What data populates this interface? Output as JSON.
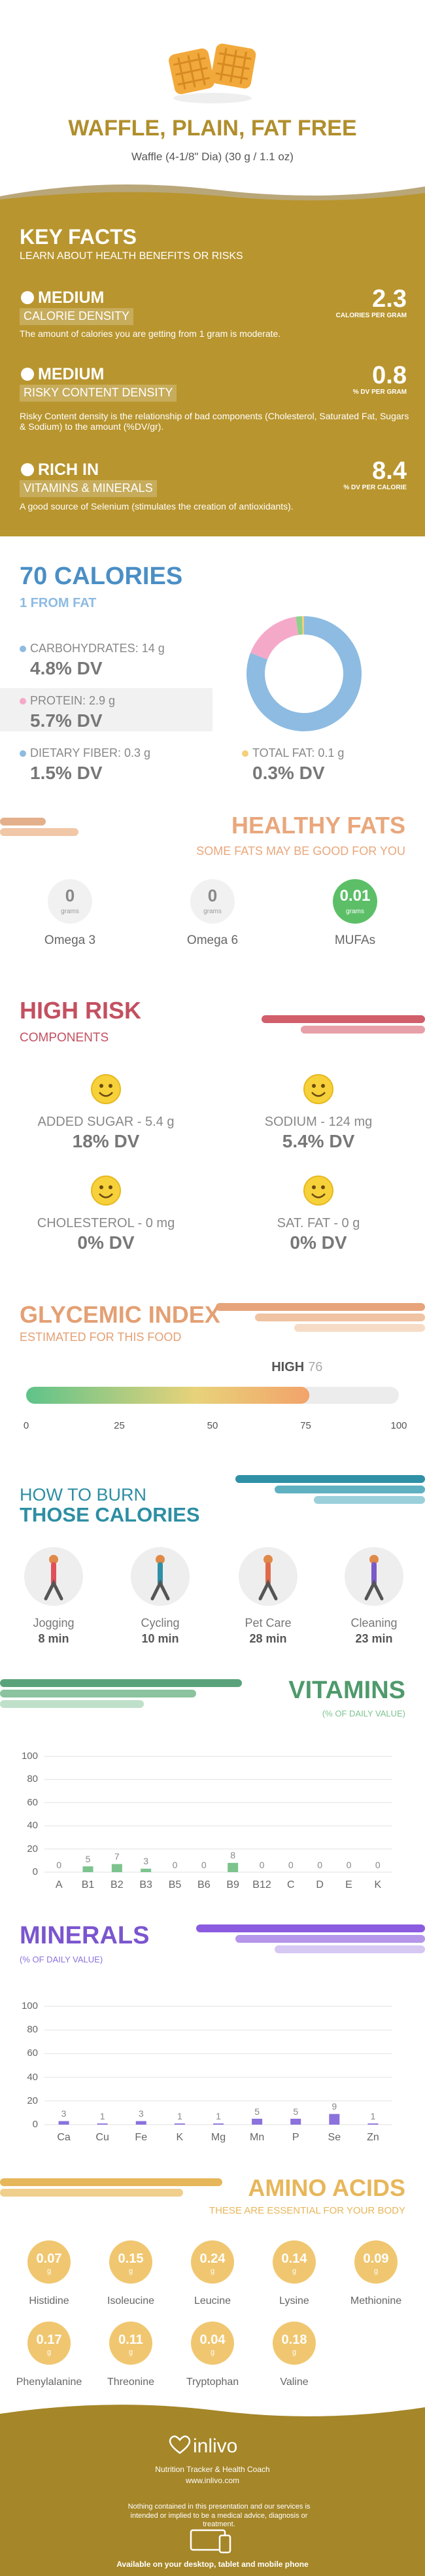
{
  "header": {
    "title": "WAFFLE, PLAIN, FAT FREE",
    "subtitle": "Waffle (4-1/8\" Dia) (30 g / 1.1 oz)"
  },
  "key_facts": {
    "title": "KEY FACTS",
    "subtitle": "LEARN ABOUT HEALTH BENEFITS OR RISKS",
    "items": [
      {
        "level": "MEDIUM",
        "name": "CALORIE DENSITY",
        "value": 2.3,
        "unit": "CALORIES PER GRAM",
        "description": "The amount of calories you are getting from 1 gram is moderate."
      },
      {
        "level": "MEDIUM",
        "name": "RISKY CONTENT DENSITY",
        "value": 0.8,
        "unit": "% DV PER GRAM",
        "description": "Risky Content density is the relationship of bad components (Cholesterol, Saturated Fat, Sugars & Sodium) to the amount (%DV/gr)."
      },
      {
        "level": "RICH  IN",
        "name": "VITAMINS & MINERALS",
        "value": 8.4,
        "unit": "% DV PER CALORIE",
        "description": "A good source of Selenium (stimulates the creation of antioxidants)."
      }
    ]
  },
  "calories": {
    "title": "70 CALORIES",
    "subtitle": "1 FROM FAT",
    "nutrients": [
      {
        "label": "CARBOHYDRATES: 14 g",
        "dv": "4.8% DV",
        "grams": 14,
        "color": "#8dbbe2"
      },
      {
        "label": "PROTEIN: 2.9 g",
        "dv": "5.7% DV",
        "grams": 2.9,
        "color": "#f5a9c9"
      },
      {
        "label": "DIETARY FIBER: 0.3 g",
        "dv": "1.5% DV",
        "grams": 0.3,
        "color": "#8fd08f"
      },
      {
        "label": "TOTAL FAT: 0.1 g",
        "dv": "0.3% DV",
        "grams": 0.1,
        "color": "#f5cf7a"
      }
    ]
  },
  "healthy_fats": {
    "title": "HEALTHY FATS",
    "subtitle": "SOME FATS MAY BE GOOD FOR YOU",
    "unit": "grams",
    "items": [
      {
        "name": "Omega 3",
        "value": 0
      },
      {
        "name": "Omega 6",
        "value": 0
      },
      {
        "name": "MUFAs",
        "value": 0.01
      }
    ]
  },
  "high_risk": {
    "title": "HIGH RISK",
    "subtitle": "COMPONENTS",
    "items": [
      {
        "label": "ADDED SUGAR - 5.4 g",
        "dv": "18% DV"
      },
      {
        "label": "SODIUM - 124 mg",
        "dv": "5.4% DV"
      },
      {
        "label": "CHOLESTEROL - 0 mg",
        "dv": "0% DV"
      },
      {
        "label": "SAT. FAT - 0 g",
        "dv": "0% DV"
      }
    ]
  },
  "glycemic": {
    "title": "GLYCEMIC INDEX",
    "subtitle": "ESTIMATED FOR THIS FOOD",
    "level": "HIGH",
    "value": 76,
    "xlim": [
      0,
      100
    ],
    "xticks": [
      0,
      25,
      50,
      75,
      100
    ]
  },
  "burn": {
    "title": "HOW TO BURN",
    "title2": "THOSE CALORIES",
    "activities": [
      {
        "name": "Jogging",
        "duration": "8 min"
      },
      {
        "name": "Cycling",
        "duration": "10 min"
      },
      {
        "name": "Pet Care",
        "duration": "28 min"
      },
      {
        "name": "Cleaning",
        "duration": "23 min"
      }
    ]
  },
  "chart_data": [
    {
      "type": "bar",
      "title": "VITAMINS",
      "subtitle": "(% OF DAILY VALUE)",
      "categories": [
        "A",
        "B1",
        "B2",
        "B3",
        "B5",
        "B6",
        "B9",
        "B12",
        "C",
        "D",
        "E",
        "K"
      ],
      "values": [
        0,
        5,
        7,
        3,
        0,
        0,
        8,
        0,
        0,
        0,
        0,
        0
      ],
      "color": "#7cc38e",
      "ylim": [
        0,
        100
      ],
      "yticks": [
        0,
        20,
        40,
        60,
        80,
        100
      ],
      "grid": true
    },
    {
      "type": "bar",
      "title": "MINERALS",
      "subtitle": "(% OF DAILY VALUE)",
      "categories": [
        "Ca",
        "Cu",
        "Fe",
        "K",
        "Mg",
        "Mn",
        "P",
        "Se",
        "Zn"
      ],
      "values": [
        3,
        1,
        3,
        1,
        1,
        5,
        5,
        9,
        1
      ],
      "color": "#8b72dc",
      "ylim": [
        0,
        100
      ],
      "yticks": [
        0,
        20,
        40,
        60,
        80,
        100
      ],
      "grid": true
    }
  ],
  "amino": {
    "title": "AMINO ACIDS",
    "subtitle": "THESE ARE ESSENTIAL FOR YOUR BODY",
    "unit": "g",
    "items": [
      {
        "name": "Histidine",
        "value": 0.07
      },
      {
        "name": "Isoleucine",
        "value": 0.15
      },
      {
        "name": "Leucine",
        "value": 0.24
      },
      {
        "name": "Lysine",
        "value": 0.14
      },
      {
        "name": "Methionine",
        "value": 0.09
      },
      {
        "name": "Phenylalanine",
        "value": 0.17
      },
      {
        "name": "Threonine",
        "value": 0.11
      },
      {
        "name": "Tryptophan",
        "value": 0.04
      },
      {
        "name": "Valine",
        "value": 0.18
      }
    ]
  },
  "footer": {
    "brand": "inlivo",
    "tagline": "Nutrition Tracker & Health Coach",
    "url": "www.inlivo.com",
    "disclaimer": "Nothing contained in this presentation and our services is intended or implied to be a medical advice, diagnosis or treatment.",
    "availability": "Available on your desktop, tablet and mobile phone"
  }
}
